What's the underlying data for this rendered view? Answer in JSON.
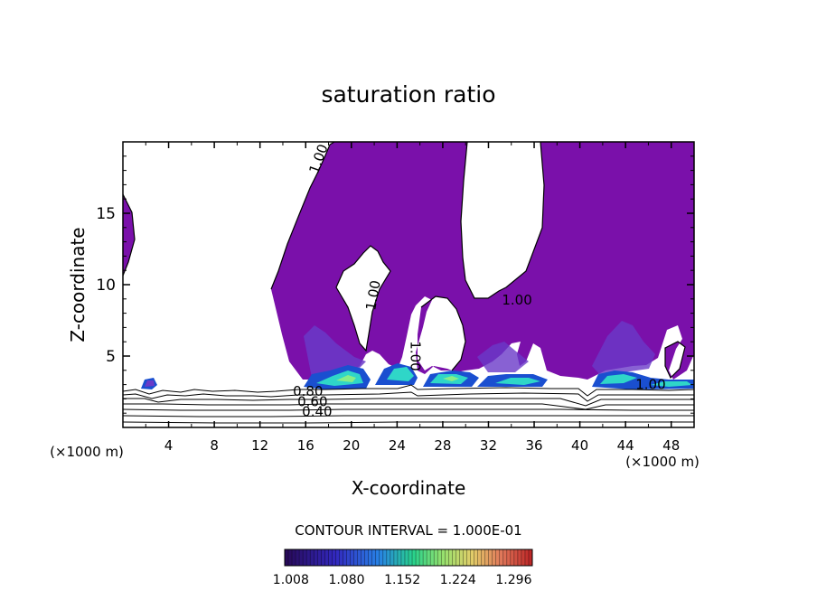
{
  "chart_data": {
    "type": "contour",
    "title": "saturation ratio",
    "xlabel": "X-coordinate",
    "ylabel": "Z-coordinate",
    "x_unit_left": "(×1000 m)",
    "x_unit_right": "(×1000 m)",
    "xlim": [
      0,
      50
    ],
    "ylim": [
      0,
      20
    ],
    "x_ticks": [
      4,
      8,
      12,
      16,
      20,
      24,
      28,
      32,
      36,
      40,
      44,
      48
    ],
    "y_ticks": [
      5,
      10,
      15
    ],
    "contour_labels": [
      {
        "text": "1.00",
        "x": 17.5,
        "y": 18.7,
        "rotate": -70
      },
      {
        "text": "1.00",
        "x": 22.3,
        "y": 9.2,
        "rotate": -80
      },
      {
        "text": "1.00",
        "x": 34.5,
        "y": 8.6,
        "rotate": 0
      },
      {
        "text": "1.00",
        "x": 25.2,
        "y": 5.0,
        "rotate": 90
      },
      {
        "text": "1.00",
        "x": 46.2,
        "y": 2.7,
        "rotate": 0
      },
      {
        "text": "0.80",
        "x": 16.2,
        "y": 2.2,
        "rotate": 0
      },
      {
        "text": "0.60",
        "x": 16.6,
        "y": 1.5,
        "rotate": 0
      },
      {
        "text": "0.40",
        "x": 17.0,
        "y": 0.8,
        "rotate": 0
      }
    ],
    "contour_interval_label": "CONTOUR INTERVAL = 1.000E-01",
    "colorbar": {
      "tick_labels": [
        "1.008",
        "1.080",
        "1.152",
        "1.224",
        "1.296"
      ],
      "min": 1.0,
      "max": 1.32
    },
    "colors": {
      "fill_main": "#7a10aa",
      "fill_mid": "#6a3ac8",
      "fill_high": "#2fd6c8",
      "fill_peak": "#88ee88",
      "edge": "#1a4fd0"
    }
  }
}
